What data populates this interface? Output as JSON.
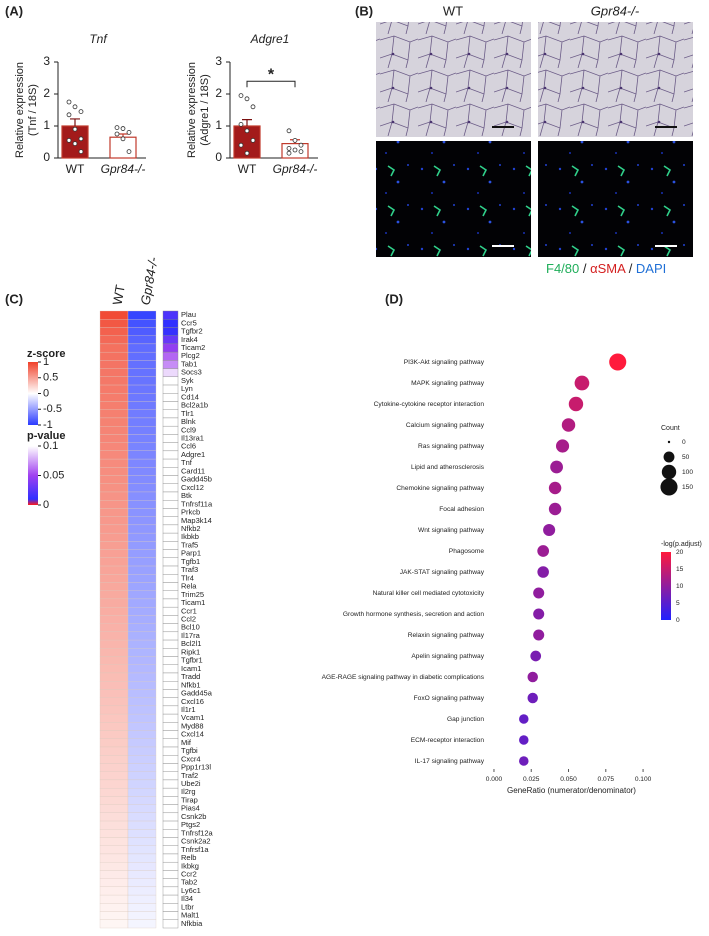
{
  "figure": {
    "panel_labels": [
      "(A)",
      "(B)",
      "(C)",
      "(D)"
    ],
    "panel_b": {
      "columns": [
        "WT",
        "Gpr84-/-"
      ],
      "stain": [
        {
          "text": "F4/80",
          "color": "#1fae5a"
        },
        {
          "text": " / ",
          "color": "#222222"
        },
        {
          "text": "αSMA",
          "color": "#d42020"
        },
        {
          "text": " / ",
          "color": "#222222"
        },
        {
          "text": "DAPI",
          "color": "#1f6fd6"
        }
      ]
    }
  },
  "chart_data": [
    {
      "type": "bar",
      "title": "Tnf",
      "ylabel": [
        "Relative expression",
        "(Tnf / 18S)"
      ],
      "categories": [
        "WT",
        "Gpr84-/-"
      ],
      "values": [
        1.0,
        0.65
      ],
      "errors": [
        0.22,
        0.1
      ],
      "points": [
        [
          1.75,
          1.6,
          1.45,
          1.35,
          0.9,
          0.6,
          0.55,
          0.45,
          0.2
        ],
        [
          0.95,
          0.92,
          0.8,
          0.75,
          0.6,
          0.2
        ]
      ],
      "colors": [
        "#a31b1b",
        "#ffffff"
      ],
      "edge_color": "#c0392b",
      "ylim": [
        0,
        3
      ],
      "yticks": [
        0,
        1,
        2,
        3
      ]
    },
    {
      "type": "bar",
      "title": "Adgre1",
      "ylabel": [
        "Relative expression",
        "(Adgre1 / 18S)"
      ],
      "categories": [
        "WT",
        "Gpr84-/-"
      ],
      "values": [
        1.0,
        0.45
      ],
      "errors": [
        0.2,
        0.12
      ],
      "points": [
        [
          1.95,
          1.85,
          1.6,
          1.05,
          0.85,
          0.55,
          0.4,
          0.15
        ],
        [
          0.85,
          0.55,
          0.4,
          0.3,
          0.25,
          0.2,
          0.15
        ]
      ],
      "colors": [
        "#a31b1b",
        "#ffffff"
      ],
      "edge_color": "#c0392b",
      "ylim": [
        0,
        3
      ],
      "yticks": [
        0,
        1,
        2,
        3
      ],
      "significance": "*"
    },
    {
      "type": "heatmap",
      "columns": [
        "WT",
        "Gpr84-/-"
      ],
      "rows": [
        "Plau",
        "Ccr5",
        "Tgfbr2",
        "Irak4",
        "Ticam2",
        "Plcg2",
        "Tab1",
        "Socs3",
        "Syk",
        "Lyn",
        "Cd14",
        "Bcl2a1b",
        "Tlr1",
        "Blnk",
        "Ccl9",
        "Il13ra1",
        "Ccl6",
        "Adgre1",
        "Tnf",
        "Card11",
        "Gadd45b",
        "Cxcl12",
        "Btk",
        "Tnfrsf11a",
        "Prkcb",
        "Map3k14",
        "Nfkb2",
        "Ikbkb",
        "Traf5",
        "Parp1",
        "Tgfb1",
        "Traf3",
        "Tlr4",
        "Rela",
        "Trim25",
        "Ticam1",
        "Ccr1",
        "Ccl2",
        "Bcl10",
        "Il17ra",
        "Bcl2l1",
        "Ripk1",
        "Tgfbr1",
        "Icam1",
        "Tradd",
        "Nfkb1",
        "Gadd45a",
        "Cxcl16",
        "Il1r1",
        "Vcam1",
        "Myd88",
        "Cxcl14",
        "Mif",
        "Tgfbi",
        "Cxcr4",
        "Ppp1r13l",
        "Traf2",
        "Ube2i",
        "Il2rg",
        "Tirap",
        "Pias4",
        "Csnk2b",
        "Ptgs2",
        "Tnfrsf12a",
        "Csnk2a2",
        "Tnfrsf1a",
        "Relb",
        "Ikbkg",
        "Ccr2",
        "Tab2",
        "Ly6c1",
        "Il34",
        "Ltbr",
        "Malt1",
        "Nfkbia"
      ],
      "z": [
        [
          0.95,
          0.88,
          0.83,
          0.79,
          0.75,
          0.74,
          0.73,
          0.72,
          0.71,
          0.7,
          0.69,
          0.68,
          0.67,
          0.66,
          0.65,
          0.64,
          0.63,
          0.62,
          0.61,
          0.6,
          0.59,
          0.58,
          0.57,
          0.56,
          0.55,
          0.54,
          0.53,
          0.52,
          0.51,
          0.5,
          0.49,
          0.48,
          0.47,
          0.46,
          0.45,
          0.44,
          0.43,
          0.42,
          0.41,
          0.4,
          0.39,
          0.38,
          0.37,
          0.36,
          0.35,
          0.34,
          0.33,
          0.32,
          0.31,
          0.3,
          0.29,
          0.28,
          0.27,
          0.26,
          0.25,
          0.24,
          0.23,
          0.22,
          0.21,
          0.2,
          0.19,
          0.18,
          0.17,
          0.16,
          0.15,
          0.14,
          0.13,
          0.12,
          0.11,
          0.1,
          0.09,
          0.08,
          0.07,
          0.06,
          0.05
        ],
        [
          -0.95,
          -0.88,
          -0.83,
          -0.79,
          -0.75,
          -0.74,
          -0.73,
          -0.72,
          -0.71,
          -0.7,
          -0.69,
          -0.68,
          -0.67,
          -0.66,
          -0.65,
          -0.64,
          -0.63,
          -0.62,
          -0.61,
          -0.6,
          -0.59,
          -0.58,
          -0.57,
          -0.56,
          -0.55,
          -0.54,
          -0.53,
          -0.52,
          -0.51,
          -0.5,
          -0.49,
          -0.48,
          -0.47,
          -0.46,
          -0.45,
          -0.44,
          -0.43,
          -0.42,
          -0.41,
          -0.4,
          -0.39,
          -0.38,
          -0.37,
          -0.36,
          -0.35,
          -0.34,
          -0.33,
          -0.32,
          -0.31,
          -0.3,
          -0.29,
          -0.28,
          -0.27,
          -0.26,
          -0.25,
          -0.24,
          -0.23,
          -0.22,
          -0.21,
          -0.2,
          -0.19,
          -0.18,
          -0.17,
          -0.16,
          -0.15,
          -0.14,
          -0.13,
          -0.12,
          -0.11,
          -0.1,
          -0.09,
          -0.08,
          -0.07,
          -0.06,
          -0.05
        ]
      ],
      "p_values": [
        0.02,
        0.01,
        0.012,
        0.03,
        0.045,
        0.06,
        0.07,
        0.09,
        0.1,
        0.1,
        0.1,
        0.1,
        0.1,
        0.1,
        0.1,
        0.1,
        0.1,
        0.1,
        0.1,
        0.1,
        0.1,
        0.1,
        0.1,
        0.1,
        0.1,
        0.1,
        0.1,
        0.1,
        0.1,
        0.1,
        0.1,
        0.1,
        0.1,
        0.1,
        0.1,
        0.1,
        0.1,
        0.1,
        0.1,
        0.1,
        0.1,
        0.1,
        0.1,
        0.1,
        0.1,
        0.1,
        0.1,
        0.1,
        0.1,
        0.1,
        0.1,
        0.1,
        0.1,
        0.1,
        0.1,
        0.1,
        0.1,
        0.1,
        0.1,
        0.1,
        0.1,
        0.1,
        0.1,
        0.1,
        0.1,
        0.1,
        0.1,
        0.1,
        0.1,
        0.1,
        0.1,
        0.1,
        0.1,
        0.1,
        0.1
      ],
      "z_legend": {
        "title": "z-score",
        "lim": [
          -1,
          1
        ],
        "ticks": [
          1,
          0.5,
          0,
          -0.5,
          -1
        ],
        "colors": [
          "#2b3bff",
          "#ffffff",
          "#f0412a"
        ]
      },
      "p_legend": {
        "title": "p-value",
        "lim": [
          0,
          0.1
        ],
        "ticks": [
          0.1,
          0.05,
          0
        ],
        "colors": [
          "#ff1a1a",
          "#3030ff",
          "#a040f0",
          "#ffffff"
        ]
      }
    },
    {
      "type": "dot",
      "categories": [
        "PI3K-Akt signaling pathway",
        "MAPK signaling pathway",
        "Cytokine-cytokine receptor interaction",
        "Calcium signaling pathway",
        "Ras signaling pathway",
        "Lipid and atherosclerosis",
        "Chemokine signaling pathway",
        "Focal adhesion",
        "Wnt signaling pathway",
        "Phagosome",
        "JAK-STAT signaling pathway",
        "Natural killer cell mediated cytotoxicity",
        "Growth hormone synthesis, secretion and action",
        "Relaxin signaling pathway",
        "Apelin signaling pathway",
        "AGE-RAGE signaling pathway in diabetic complications",
        "FoxO signaling pathway",
        "Gap junction",
        "ECM-receptor interaction",
        "IL-17 signaling pathway"
      ],
      "x": [
        0.083,
        0.059,
        0.055,
        0.05,
        0.046,
        0.042,
        0.041,
        0.041,
        0.037,
        0.033,
        0.033,
        0.03,
        0.03,
        0.03,
        0.028,
        0.026,
        0.026,
        0.02,
        0.02,
        0.02
      ],
      "size": [
        150,
        105,
        100,
        85,
        80,
        75,
        70,
        70,
        65,
        60,
        58,
        52,
        52,
        52,
        48,
        45,
        45,
        35,
        35,
        35
      ],
      "color_values": [
        20,
        15,
        15,
        13,
        12,
        11,
        12,
        11,
        10,
        11,
        9,
        10,
        9,
        10,
        8,
        10,
        7,
        6,
        6,
        7
      ],
      "xlim": [
        -0.004,
        0.108
      ],
      "xticks": [
        {
          "value": 0,
          "label": "0.000"
        },
        {
          "value": 0.025,
          "label": "0.025"
        },
        {
          "value": 0.05,
          "label": "0.050"
        },
        {
          "value": 0.075,
          "label": "0.075"
        },
        {
          "value": 0.1,
          "label": "0.100"
        }
      ],
      "xlabel": "GeneRatio (numerator/denominator)",
      "size_legend": {
        "title": "Count",
        "values": [
          0,
          50,
          100,
          150
        ]
      },
      "color_legend": {
        "title": "-log(p.adjust)",
        "lim": [
          0,
          20
        ],
        "ticks": [
          20,
          15,
          10,
          5,
          0
        ],
        "colors": [
          "#2020ff",
          "#ff1a3c"
        ]
      }
    }
  ]
}
